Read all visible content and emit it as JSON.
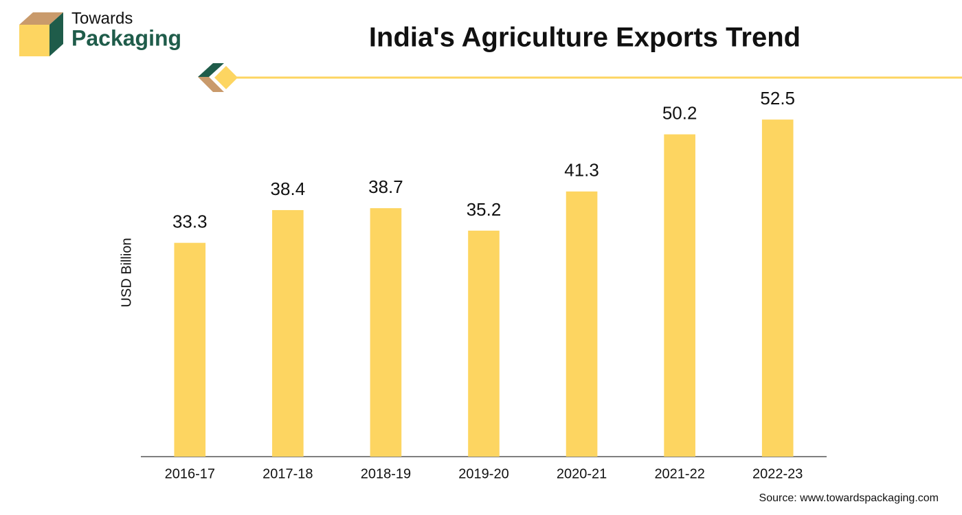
{
  "logo": {
    "line1": "Towards",
    "line2": "Packaging"
  },
  "chart_data": {
    "type": "bar",
    "title": "India's Agriculture Exports Trend",
    "y_label": "USD Billion",
    "categories": [
      "2016-17",
      "2017-18",
      "2018-19",
      "2019-20",
      "2020-21",
      "2021-22",
      "2022-23"
    ],
    "values": [
      33.3,
      38.4,
      38.7,
      35.2,
      41.3,
      50.2,
      52.5
    ],
    "color": "#fdd561",
    "ylim": [
      0,
      60
    ],
    "source": "Source: www.towardspackaging.com"
  }
}
